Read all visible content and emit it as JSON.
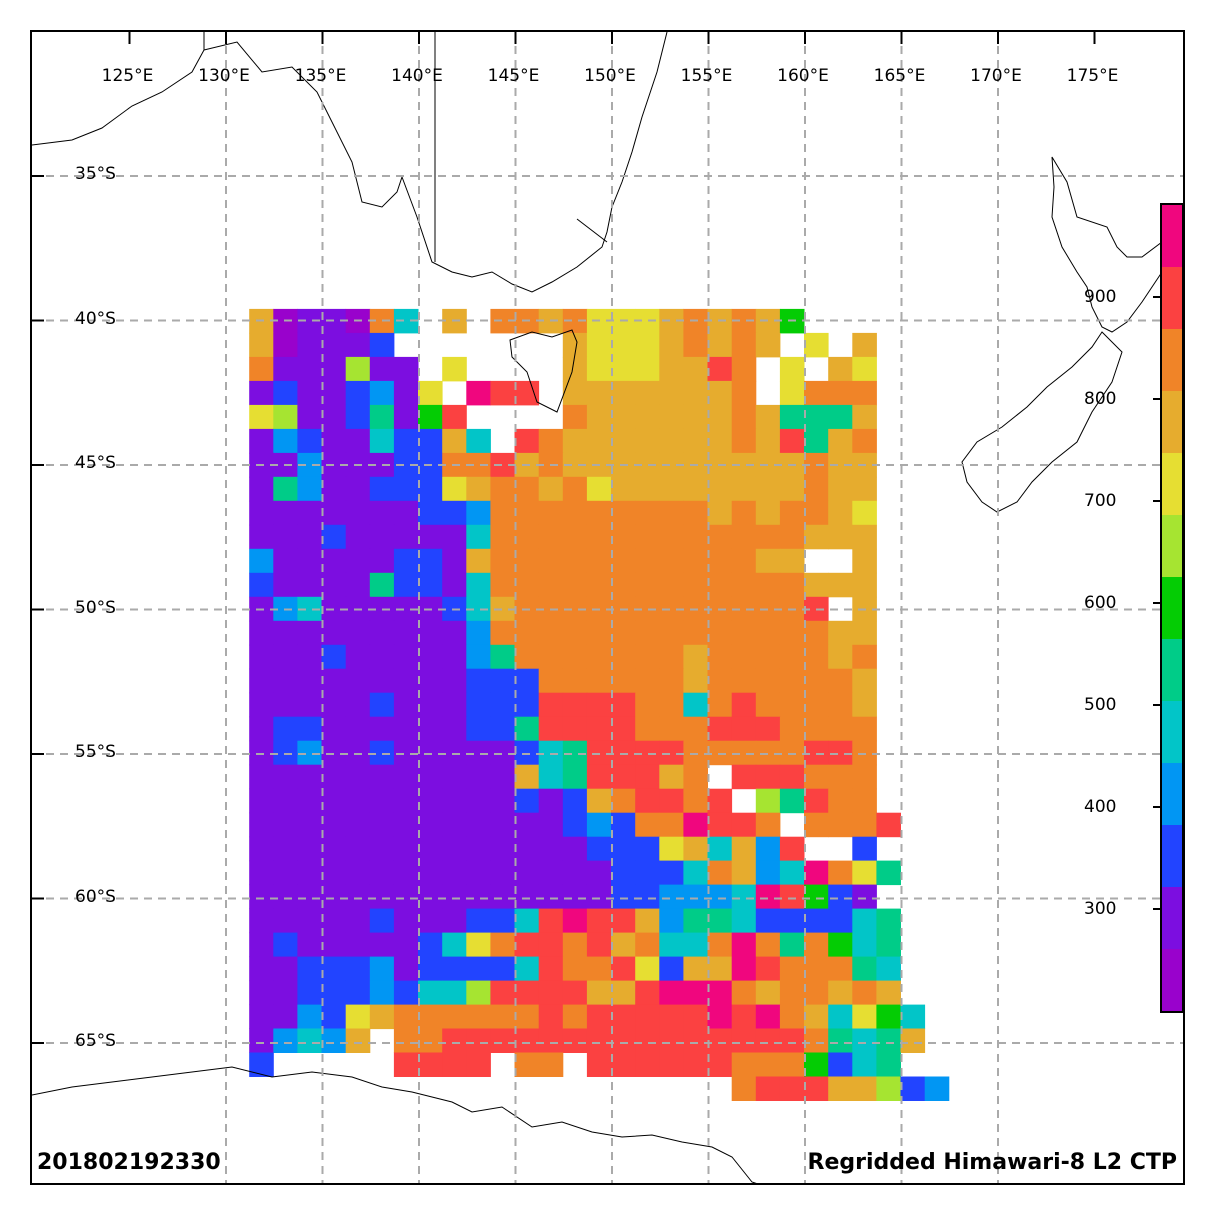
{
  "title": "Regridded Himawari-8 L2 CTP",
  "timestamp": "201802192330",
  "axes": {
    "lon_ticks": [
      "125°E",
      "130°E",
      "135°E",
      "140°E",
      "145°E",
      "150°E",
      "155°E",
      "160°E",
      "165°E",
      "170°E",
      "175°E"
    ],
    "lat_ticks": [
      "35°S",
      "40°S",
      "45°S",
      "50°S",
      "55°S",
      "60°S",
      "65°S"
    ],
    "lon_range": [
      120.5,
      180.5
    ],
    "lat_range": [
      -31.7,
      -71.7
    ],
    "gridlines": true,
    "grid_style": "dashed gray"
  },
  "colorbar": {
    "tick_labels": [
      "900",
      "800",
      "700",
      "600",
      "500",
      "400",
      "300"
    ],
    "tick_values": [
      900,
      800,
      700,
      600,
      500,
      400,
      300
    ],
    "range": [
      200,
      990
    ],
    "palette": [
      "#f0067e",
      "#fb4141",
      "#f08428",
      "#e6ac2e",
      "#e6de32",
      "#a6e431",
      "#04cc04",
      "#00cc88",
      "#02c5c8",
      "#0196f3",
      "#2244ff",
      "#7c0ee0",
      "#9902cc"
    ],
    "placement": "right"
  },
  "chart_data": {
    "type": "heatmap",
    "title": "Regridded Himawari-8 L2 CTP",
    "variable": "CTP",
    "grid": {
      "lon_start": 131.2,
      "lon_step": 1.25,
      "lat_start": -39.6,
      "lat_step": -0.83
    },
    "palette_keys": {
      "M": "#f0067e",
      "R": "#fb4141",
      "O": "#f08428",
      "G": "#e6ac2e",
      "Y": "#e6de32",
      "L": "#a6e431",
      "N": "#04cc04",
      "E": "#00cc88",
      "T": "#02c5c8",
      "S": "#0196f3",
      "B": "#2244ff",
      "P": "#7c0ee0",
      "V": "#9902cc",
      ".": "none"
    },
    "rows": [
      "GVPPVOT.G.OOGOYYYGOGOGN...",
      "GVPPPB.......GYYYGOGOG.Y.G",
      "OPPPLPP.Y....GYYYGGRO.Y.GY",
      "PBPPBSPY.MRR.GGGGGGGO.YOOO",
      "YLPPBEPNR....OGGGGGGOGEEEG",
      "PSBPPTBBGT.ROGGGGGGGOGREGO",
      "PPSPPPBBOORGOGGGGGGGGGGOGG",
      "PESPPBBBYGOOGOYGGGGGGGGOGG",
      "PPPPPPPBBSOOOOOOOOOGOGOOGY",
      "PPPBPPPPPTOOOOOOOOOOOOOGGG",
      "SPPPPPBBPGOOOOOOOOOOOGG..G",
      "BPPPPEBBPTOOOOOOOOOOOOOGGG",
      "PSTPPPPPBTGOOOOOOOOOOOOR.G",
      "PPPPPPPPPSOOOOOOOOOOOOOOGG",
      "PPPBPPPPPSEOOOOOOOGOOOOOGO",
      "PPPPPPPPPBBBOOOOOOGOOOOOOG",
      "PPPPPBPPPBBBRRRROOTOROOOOG",
      "PBBPPPPPPBBERRRROOORRROOOO",
      "PBSPPBPPPPPBTERRRROOOOORRO",
      "PPPPPPPPPPPGTERRRGO.RRROOO",
      "PPPPPPPPPPPBPBGORROR.LEROO",
      "PPPPPPPPPPPPPBSBOOMRRO.OOOR",
      "PPPPPPPPPPPPPPBBBYGTGSR..B",
      "PPPPPPPPPPPPPPPBBBTOGSTMOYE",
      "PPPPPPPPPPPPPPPBBSSSTMRNBP",
      "PPPPPBPPPBBTRMRRGSEETBBBBTE",
      "PBPPPPPBTYORRORGOTTOMOEONTE",
      "PPBBBSPBBBBTROORYBGGMROOOET",
      "PPBBBSBTTLRRRRGGRMMMOGOOGOG",
      "PPSBYGOOOOOORORRRRRMRMOGTYNT",
      "PSTSG.OORRRRRRRRRRRRRRROETEG",
      "B.....RRRR.OO.RRRRRROOONBTE.",
      "....................ORRRGGLBS"
    ]
  },
  "labels": {
    "colorbar_name": "cloud top pressure colorbar"
  }
}
